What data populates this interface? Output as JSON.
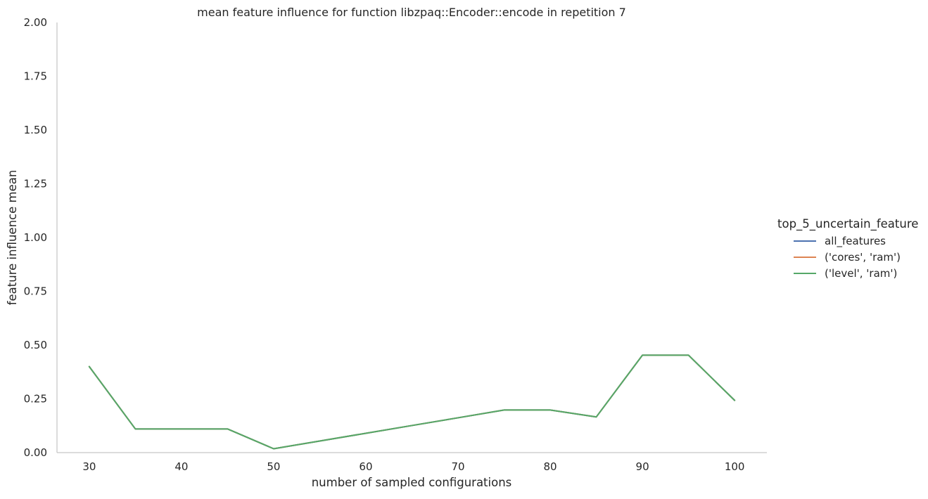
{
  "chart_data": {
    "type": "line",
    "title": "mean feature influence for function libzpaq::Encoder::encode in repetition 7",
    "xlabel": "number of sampled configurations",
    "ylabel": "feature influence mean",
    "xlim": [
      26.5,
      103.5
    ],
    "ylim": [
      0,
      2
    ],
    "xticks": [
      30,
      40,
      50,
      60,
      70,
      80,
      90,
      100
    ],
    "xtick_labels": [
      "30",
      "40",
      "50",
      "60",
      "70",
      "80",
      "90",
      "100"
    ],
    "yticks": [
      0,
      0.25,
      0.5,
      0.75,
      1,
      1.25,
      1.5,
      1.75,
      2
    ],
    "ytick_labels": [
      "0.00",
      "0.25",
      "0.50",
      "0.75",
      "1.00",
      "1.25",
      "1.50",
      "1.75",
      "2.00"
    ],
    "grid": false,
    "legend_placement": "outside-right",
    "legend_title": "top_5_uncertain_feature",
    "x": [
      30,
      35,
      40,
      45,
      50,
      55,
      60,
      65,
      70,
      75,
      80,
      85,
      90,
      95,
      100
    ],
    "series": [
      {
        "name": "all_features",
        "color": "#4c72b0",
        "values": [
          0.4,
          0.11,
          0.11,
          0.11,
          0.018,
          0.054,
          0.09,
          0.126,
          0.162,
          0.198,
          0.198,
          0.166,
          0.453,
          0.453,
          0.243
        ]
      },
      {
        "name": "('cores', 'ram')",
        "color": "#dd8452",
        "values": [
          0.4,
          0.11,
          0.11,
          0.11,
          0.018,
          0.054,
          0.09,
          0.126,
          0.162,
          0.198,
          0.198,
          0.166,
          0.453,
          0.453,
          0.243
        ]
      },
      {
        "name": "('level', 'ram')",
        "color": "#55a868",
        "values": [
          0.4,
          0.11,
          0.11,
          0.11,
          0.018,
          0.054,
          0.09,
          0.126,
          0.162,
          0.198,
          0.198,
          0.166,
          0.453,
          0.453,
          0.243
        ]
      }
    ]
  },
  "colors": {
    "axis": "#c8c8c8",
    "text": "#262626"
  }
}
